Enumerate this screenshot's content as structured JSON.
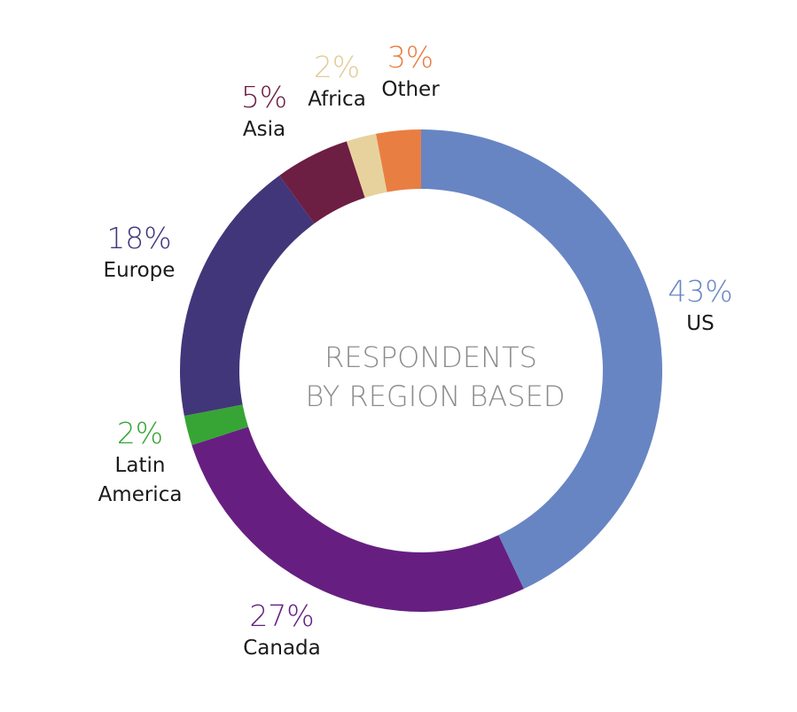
{
  "chart_data": {
    "type": "pie",
    "title": "RESPONDENTS BY REGION BASED",
    "title_lines": [
      "RESPONDENTS",
      "BY REGION BASED"
    ],
    "donut": true,
    "categories": [
      "US",
      "Canada",
      "Latin America",
      "Europe",
      "Asia",
      "Africa",
      "Other"
    ],
    "values": [
      43,
      27,
      2,
      18,
      5,
      2,
      3
    ],
    "labels": [
      {
        "pct": "43%",
        "name_lines": [
          "US"
        ]
      },
      {
        "pct": "27%",
        "name_lines": [
          "Canada"
        ]
      },
      {
        "pct": "2%",
        "name_lines": [
          "Latin",
          "America"
        ]
      },
      {
        "pct": "18%",
        "name_lines": [
          "Europe"
        ]
      },
      {
        "pct": "5%",
        "name_lines": [
          "Asia"
        ]
      },
      {
        "pct": "2%",
        "name_lines": [
          "Africa"
        ]
      },
      {
        "pct": "3%",
        "name_lines": [
          "Other"
        ]
      }
    ],
    "colors": [
      "#6885c3",
      "#661f81",
      "#37a535",
      "#413679",
      "#6d1e43",
      "#e7d29e",
      "#e97e42"
    ]
  }
}
